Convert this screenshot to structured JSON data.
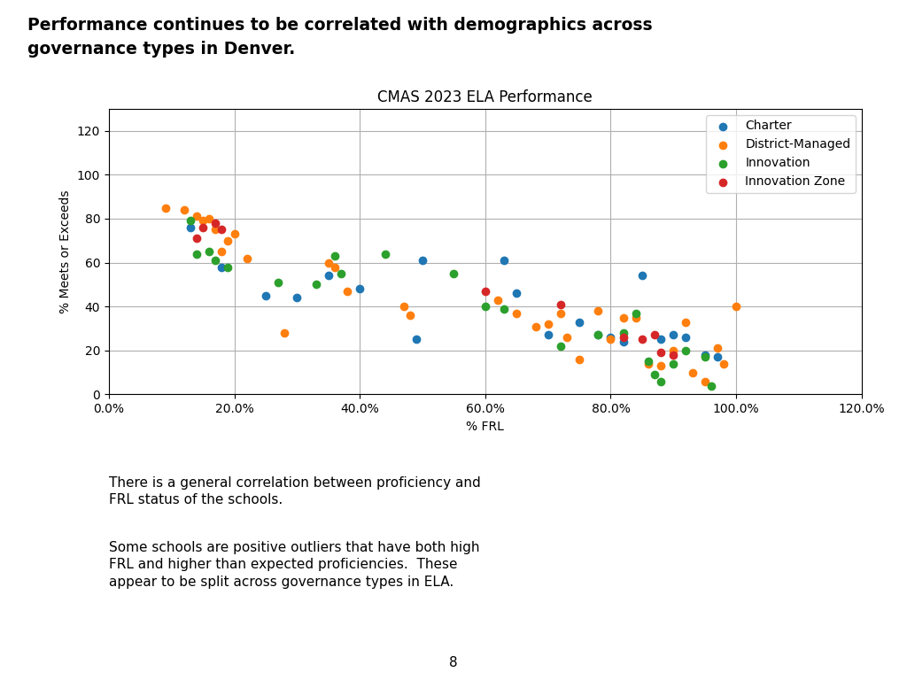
{
  "chart_data": {
    "type": "scatter",
    "title": "CMAS 2023 ELA Performance",
    "x_label": "% FRL",
    "y_label": "% Meets or Exceeds",
    "annotations": [
      "Performance continues to be correlated with demographics across",
      "governance types in Denver.",
      "There is a general correlation between proficiency and\nFRL status of the schools.",
      "Some schools are positive outliers that have both high\nFRL and higher than expected proficiencies.  These\nappear to be split across governance types in ELA.",
      "8"
    ],
    "xlim": [
      0.0,
      1.2
    ],
    "ylim": [
      0,
      130
    ],
    "xticks": [
      {
        "value": 0.0,
        "label": "0.0%"
      },
      {
        "value": 0.2,
        "label": "20.0%"
      },
      {
        "value": 0.4,
        "label": "40.0%"
      },
      {
        "value": 0.6,
        "label": "60.0%"
      },
      {
        "value": 0.8,
        "label": "80.0%"
      },
      {
        "value": 1.0,
        "label": "100.0%"
      },
      {
        "value": 1.2,
        "label": "120.0%"
      }
    ],
    "yticks": [
      0,
      20,
      40,
      60,
      80,
      100,
      120
    ],
    "grid": true,
    "legend": "upper right",
    "series": [
      {
        "name": "Charter",
        "x": [
          0.13,
          0.18,
          0.25,
          0.3,
          0.35,
          0.4,
          0.49,
          0.5,
          0.63,
          0.65,
          0.7,
          0.75,
          0.78,
          0.8,
          0.82,
          0.85,
          0.88,
          0.9,
          0.92,
          0.95,
          0.97
        ],
        "values": [
          76,
          58,
          45,
          44,
          54,
          48,
          25,
          61,
          61,
          46,
          27,
          33,
          27,
          26,
          24,
          54,
          25,
          27,
          26,
          18,
          17
        ]
      },
      {
        "name": "District-Managed",
        "x": [
          0.09,
          0.12,
          0.14,
          0.15,
          0.16,
          0.17,
          0.18,
          0.19,
          0.2,
          0.22,
          0.28,
          0.35,
          0.36,
          0.38,
          0.47,
          0.48,
          0.62,
          0.65,
          0.68,
          0.7,
          0.72,
          0.73,
          0.75,
          0.78,
          0.8,
          0.82,
          0.84,
          0.86,
          0.88,
          0.9,
          0.92,
          0.93,
          0.95,
          0.97,
          0.98,
          1.0
        ],
        "values": [
          85,
          84,
          81,
          79,
          80,
          75,
          65,
          70,
          73,
          62,
          28,
          60,
          58,
          47,
          40,
          36,
          43,
          37,
          31,
          32,
          37,
          26,
          16,
          38,
          25,
          35,
          35,
          14,
          13,
          20,
          33,
          10,
          6,
          21,
          14,
          40
        ]
      },
      {
        "name": "Innovation",
        "x": [
          0.13,
          0.14,
          0.16,
          0.17,
          0.19,
          0.27,
          0.33,
          0.36,
          0.37,
          0.44,
          0.55,
          0.6,
          0.63,
          0.72,
          0.78,
          0.82,
          0.84,
          0.86,
          0.87,
          0.88,
          0.9,
          0.92,
          0.95,
          0.96
        ],
        "values": [
          79,
          64,
          65,
          61,
          58,
          51,
          50,
          63,
          55,
          64,
          55,
          40,
          39,
          22,
          27,
          28,
          37,
          15,
          9,
          6,
          14,
          20,
          17,
          4
        ]
      },
      {
        "name": "Innovation Zone",
        "x": [
          0.14,
          0.15,
          0.17,
          0.18,
          0.6,
          0.72,
          0.82,
          0.85,
          0.87,
          0.88,
          0.9
        ],
        "values": [
          71,
          76,
          78,
          75,
          47,
          41,
          26,
          25,
          27,
          19,
          18
        ]
      }
    ]
  }
}
